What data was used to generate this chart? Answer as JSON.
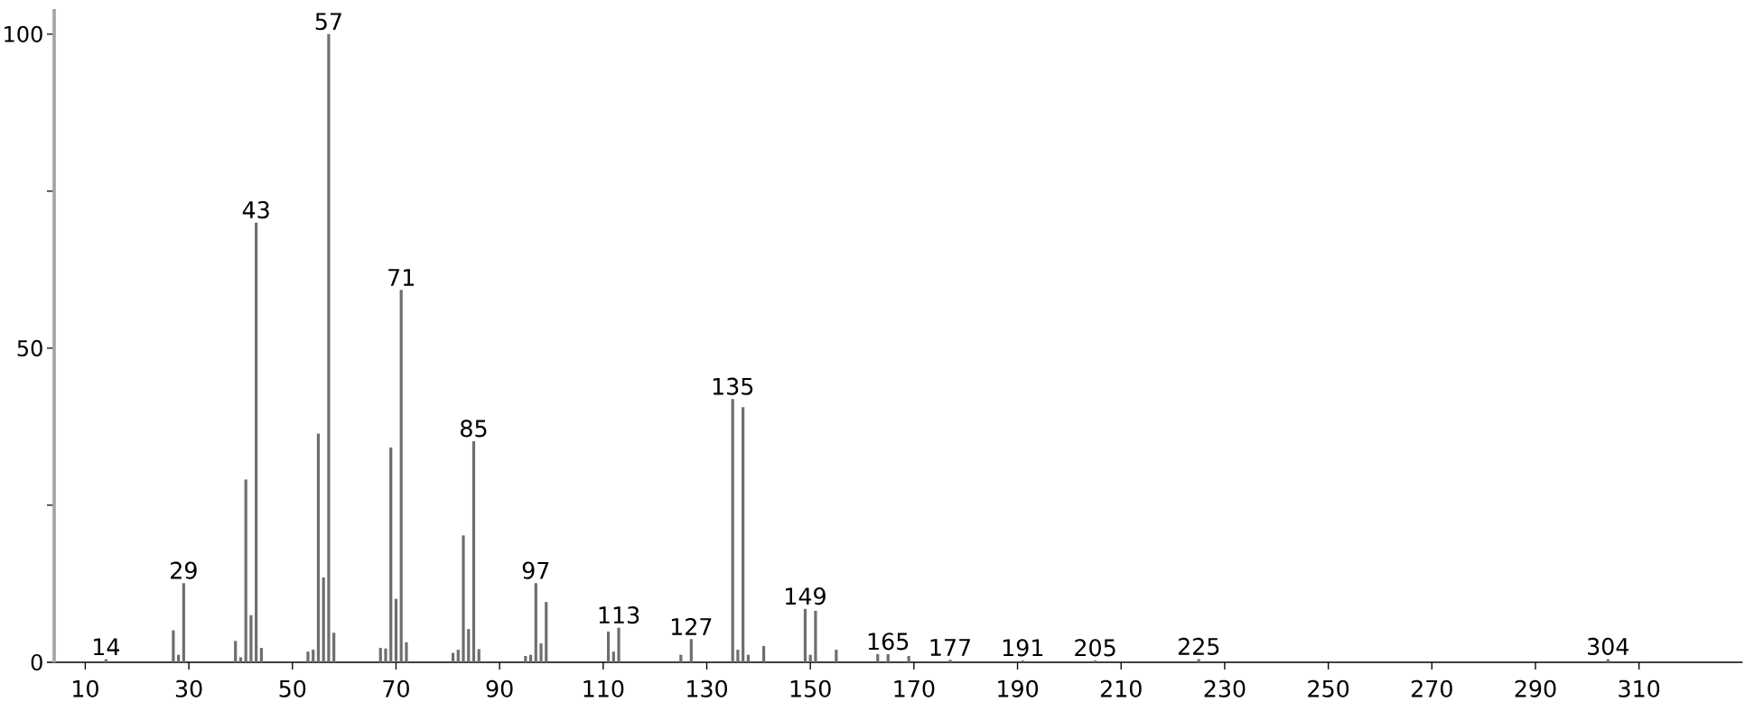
{
  "chart_data": {
    "type": "bar",
    "color": "#6e6e6e",
    "x": [
      14,
      27,
      28,
      29,
      39,
      40,
      41,
      42,
      43,
      44,
      53,
      54,
      55,
      56,
      57,
      58,
      67,
      68,
      69,
      70,
      71,
      72,
      81,
      82,
      83,
      84,
      85,
      86,
      95,
      96,
      97,
      98,
      99,
      111,
      112,
      113,
      125,
      127,
      135,
      136,
      137,
      138,
      141,
      149,
      150,
      151,
      155,
      163,
      165,
      169,
      177,
      191,
      205,
      225,
      304
    ],
    "values": [
      0.5,
      5.1,
      1.2,
      12.6,
      3.4,
      0.8,
      29.1,
      7.5,
      70,
      2.3,
      1.7,
      2,
      36.4,
      13.5,
      100,
      4.7,
      2.3,
      2.2,
      34.2,
      10.1,
      59.3,
      3.2,
      1.5,
      2,
      20.2,
      5.3,
      35.2,
      2.1,
      1,
      1.2,
      12.6,
      3,
      9.6,
      4.9,
      1.7,
      5.5,
      1.2,
      3.7,
      41.9,
      2,
      40.6,
      1.2,
      2.6,
      8.5,
      1.2,
      8.2,
      2,
      1.3,
      1.3,
      1,
      0.4,
      0.3,
      0.3,
      0.5,
      0.5
    ],
    "xlim": [
      4,
      330
    ],
    "ylim": [
      0,
      104
    ],
    "xticks": [
      10,
      30,
      50,
      70,
      90,
      110,
      130,
      150,
      170,
      190,
      210,
      230,
      250,
      270,
      290,
      310
    ],
    "yticks": [
      0,
      {
        "value": 25,
        "label": null
      },
      50,
      {
        "value": 75,
        "label": null
      },
      100
    ],
    "annotations": [
      {
        "text": "14",
        "x": 14,
        "y": 0.5
      },
      {
        "text": "29",
        "x": 29,
        "y": 12.6
      },
      {
        "text": "43",
        "x": 43,
        "y": 70
      },
      {
        "text": "57",
        "x": 57,
        "y": 100
      },
      {
        "text": "71",
        "x": 71,
        "y": 59.3
      },
      {
        "text": "85",
        "x": 85,
        "y": 35.2
      },
      {
        "text": "97",
        "x": 97,
        "y": 12.6
      },
      {
        "text": "113",
        "x": 113,
        "y": 5.5
      },
      {
        "text": "127",
        "x": 127,
        "y": 3.7
      },
      {
        "text": "135",
        "x": 135,
        "y": 41.9
      },
      {
        "text": "149",
        "x": 149,
        "y": 8.5
      },
      {
        "text": "165",
        "x": 165,
        "y": 1.3
      },
      {
        "text": "177",
        "x": 177,
        "y": 0.4
      },
      {
        "text": "191",
        "x": 191,
        "y": 0.3
      },
      {
        "text": "205",
        "x": 205,
        "y": 0.3
      },
      {
        "text": "225",
        "x": 225,
        "y": 0.5
      },
      {
        "text": "304",
        "x": 304,
        "y": 0.5
      }
    ]
  }
}
